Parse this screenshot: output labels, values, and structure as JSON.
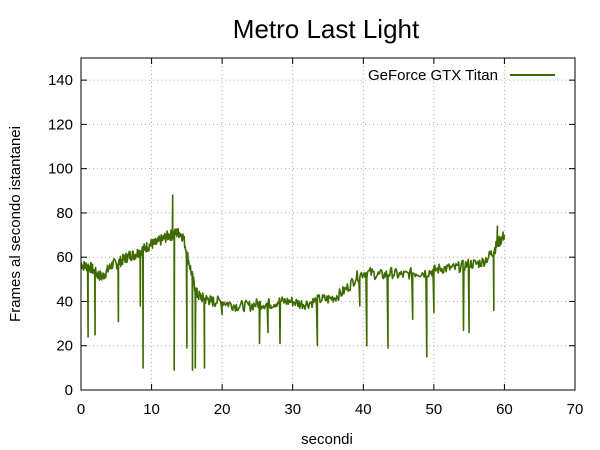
{
  "chart_data": {
    "type": "line",
    "title": "Metro Last Light",
    "xlabel": "secondi",
    "ylabel": "Frames al secondo istantanei",
    "xlim": [
      0,
      70
    ],
    "ylim": [
      0,
      150
    ],
    "xticks": [
      0,
      10,
      20,
      30,
      40,
      50,
      60,
      70
    ],
    "yticks": [
      0,
      20,
      40,
      60,
      80,
      100,
      120,
      140
    ],
    "grid": true,
    "legend_position": "top-right",
    "series": [
      {
        "name": "GeForce GTX Titan",
        "color": "#3d6b00",
        "x": [
          0,
          0.5,
          1,
          1.5,
          2,
          2.5,
          3,
          3.5,
          4,
          4.5,
          5,
          5.5,
          6,
          6.5,
          7,
          7.5,
          8,
          8.5,
          9,
          9.5,
          10,
          10.5,
          11,
          11.5,
          12,
          12.5,
          13,
          13.5,
          14,
          14.5,
          15,
          15.5,
          16,
          16.5,
          17,
          17.5,
          18,
          18.5,
          19,
          20,
          21,
          22,
          23,
          24,
          25,
          26,
          27,
          28,
          29,
          30,
          31,
          32,
          33,
          34,
          35,
          36,
          37,
          38,
          39,
          40,
          41,
          42,
          43,
          44,
          45,
          46,
          47,
          48,
          49,
          50,
          51,
          52,
          53,
          54,
          55,
          56,
          57,
          58,
          58.5,
          59,
          59.5,
          60
        ],
        "y": [
          57,
          56,
          56,
          55,
          53,
          52,
          51,
          53,
          55,
          57,
          57,
          58,
          59,
          60,
          61,
          61,
          62,
          63,
          64,
          65,
          66,
          66,
          67,
          68,
          69,
          70,
          70,
          71,
          71,
          69,
          62,
          55,
          48,
          43,
          42,
          41,
          41,
          40,
          40,
          40,
          39,
          38,
          38,
          38,
          39,
          39,
          39,
          40,
          40,
          40,
          39,
          39,
          40,
          41,
          41,
          42,
          44,
          47,
          51,
          53,
          53,
          52,
          52,
          53,
          52,
          52,
          53,
          53,
          53,
          54,
          55,
          55,
          55,
          56,
          57,
          57,
          58,
          61,
          63,
          66,
          68,
          70
        ]
      }
    ],
    "annotations_spikes": [
      {
        "x": 1,
        "y": 24
      },
      {
        "x": 2,
        "y": 25
      },
      {
        "x": 5.3,
        "y": 31
      },
      {
        "x": 8.8,
        "y": 10
      },
      {
        "x": 8.4,
        "y": 38
      },
      {
        "x": 13.2,
        "y": 9
      },
      {
        "x": 13,
        "y": 88
      },
      {
        "x": 15,
        "y": 19
      },
      {
        "x": 15.8,
        "y": 9
      },
      {
        "x": 16.2,
        "y": 10
      },
      {
        "x": 17.5,
        "y": 10
      },
      {
        "x": 20,
        "y": 34
      },
      {
        "x": 25.3,
        "y": 21
      },
      {
        "x": 26.5,
        "y": 26
      },
      {
        "x": 28.2,
        "y": 21
      },
      {
        "x": 33.5,
        "y": 20
      },
      {
        "x": 39.5,
        "y": 38
      },
      {
        "x": 40.5,
        "y": 20
      },
      {
        "x": 43.5,
        "y": 19
      },
      {
        "x": 47,
        "y": 32
      },
      {
        "x": 49,
        "y": 15
      },
      {
        "x": 50,
        "y": 35
      },
      {
        "x": 54.2,
        "y": 27
      },
      {
        "x": 55,
        "y": 26
      },
      {
        "x": 58.5,
        "y": 36
      },
      {
        "x": 59,
        "y": 74
      }
    ]
  }
}
